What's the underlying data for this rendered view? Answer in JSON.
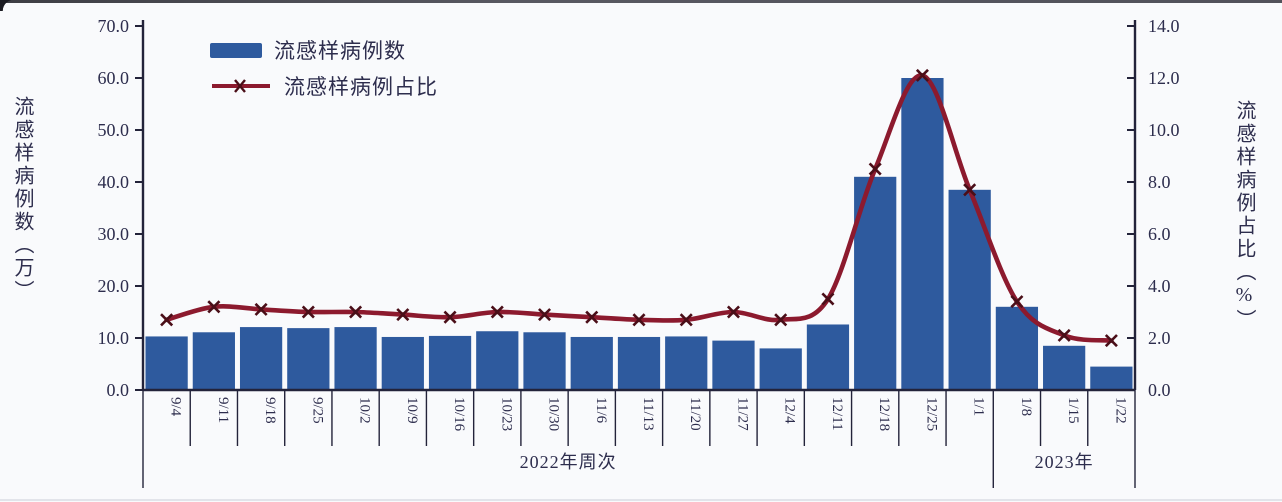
{
  "legend": {
    "bar_label": "流感样病例数",
    "line_label": "流感样病例占比"
  },
  "left_axis_title": "流感样病例数（万）",
  "right_axis_title": "流感样病例占比（%）",
  "x_axis_groups": {
    "group_2022_label": "2022年周次",
    "group_2023_label": "2023年",
    "split_index": 18
  },
  "colors": {
    "bar": "#2e5a9e",
    "line": "#8c1a2e",
    "marker": "#4a0e18",
    "axis": "#23233a",
    "text": "#2d2d4d"
  },
  "chart_data": {
    "type": "bar",
    "subtype": "bar+line dual axis",
    "categories": [
      "9/4",
      "9/11",
      "9/18",
      "9/25",
      "10/2",
      "10/9",
      "10/16",
      "10/23",
      "10/30",
      "11/6",
      "11/13",
      "11/20",
      "11/27",
      "12/4",
      "12/11",
      "12/18",
      "12/25",
      "1/1",
      "1/8",
      "1/15",
      "1/22"
    ],
    "series": [
      {
        "name": "流感样病例数",
        "type": "bar",
        "axis": "left",
        "unit": "万",
        "values": [
          10.3,
          11.1,
          12.1,
          11.9,
          12.1,
          10.2,
          10.4,
          11.3,
          11.1,
          10.2,
          10.2,
          10.3,
          9.5,
          8.0,
          12.6,
          41.0,
          60.0,
          38.5,
          16.0,
          8.5,
          4.5
        ]
      },
      {
        "name": "流感样病例占比",
        "type": "line",
        "axis": "right",
        "unit": "%",
        "values": [
          2.7,
          3.2,
          3.1,
          3.0,
          3.0,
          2.9,
          2.8,
          3.0,
          2.9,
          2.8,
          2.7,
          2.7,
          3.0,
          2.7,
          3.5,
          8.5,
          12.1,
          7.7,
          3.4,
          2.1,
          1.9
        ]
      }
    ],
    "left_axis": {
      "min": 0,
      "max": 70,
      "step": 10,
      "tick_labels": [
        "0.0",
        "10.0",
        "20.0",
        "30.0",
        "40.0",
        "50.0",
        "60.0",
        "70.0"
      ],
      "title": "流感样病例数（万）"
    },
    "right_axis": {
      "min": 0,
      "max": 14,
      "step": 2,
      "tick_labels": [
        "0.0",
        "2.0",
        "4.0",
        "6.0",
        "8.0",
        "10.0",
        "12.0",
        "14.0"
      ],
      "title": "流感样病例占比（%）"
    },
    "xlabel_groups": [
      "2022年周次",
      "2023年"
    ],
    "grid": false,
    "legend_position": "top-left"
  }
}
